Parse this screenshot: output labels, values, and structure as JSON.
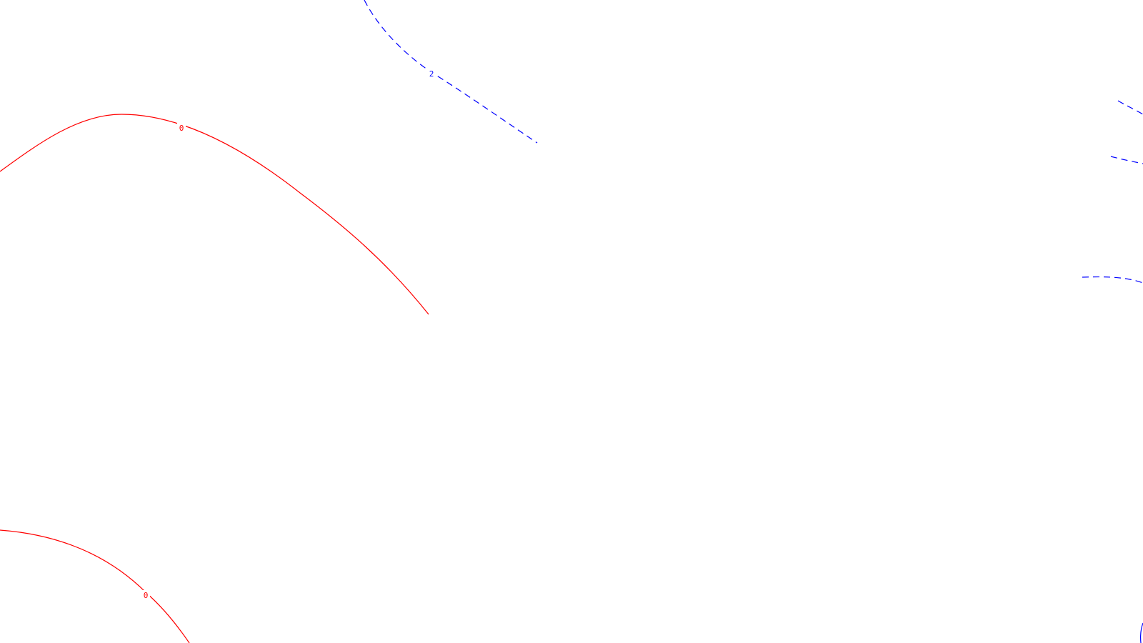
{
  "colors": {
    "background": "#ffffff",
    "zero_contour": "#ff0000",
    "positive_contour": "#0000ff"
  },
  "contours": [
    {
      "id": "red-arc-upper",
      "level_label": "0",
      "style": "solid",
      "color": "#ff0000"
    },
    {
      "id": "red-arc-lower",
      "level_label": "0",
      "style": "solid",
      "color": "#ff0000"
    },
    {
      "id": "blue-arc-top",
      "level_label": "2",
      "style": "dashed",
      "color": "#0000ff"
    },
    {
      "id": "blue-edge-1",
      "level_label": "",
      "style": "dashed",
      "color": "#0000ff"
    },
    {
      "id": "blue-edge-2",
      "level_label": "",
      "style": "dashed",
      "color": "#0000ff"
    },
    {
      "id": "blue-edge-3",
      "level_label": "",
      "style": "dashed",
      "color": "#0000ff"
    },
    {
      "id": "blue-edge-4",
      "level_label": "",
      "style": "dashed",
      "color": "#0000ff"
    }
  ]
}
